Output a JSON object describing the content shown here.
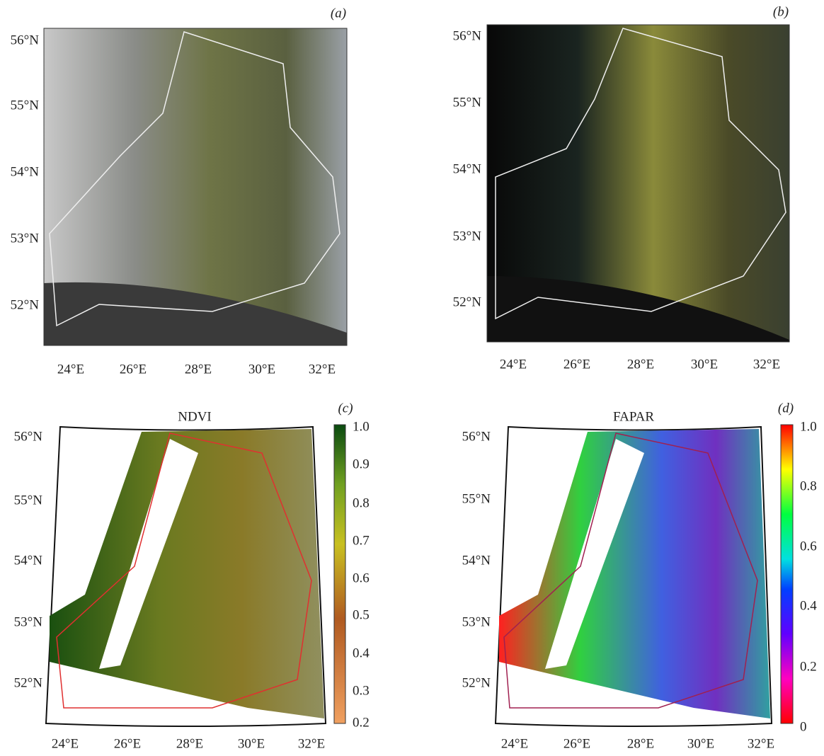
{
  "panels": [
    {
      "label": "(a)",
      "lat_labels": [
        "56°N",
        "55°N",
        "54°N",
        "53°N",
        "52°N"
      ],
      "lon_labels": [
        "24°E",
        "26°E",
        "28°E",
        "30°E",
        "32°E"
      ]
    },
    {
      "label": "(b)",
      "lat_labels": [
        "56°N",
        "55°N",
        "54°N",
        "53°N",
        "52°N"
      ],
      "lon_labels": [
        "24°E",
        "26°E",
        "28°E",
        "30°E",
        "32°E"
      ]
    },
    {
      "label": "(c)",
      "title": "NDVI",
      "lat_labels": [
        "56°N",
        "55°N",
        "54°N",
        "53°N",
        "52°N"
      ],
      "lon_labels": [
        "24°E",
        "26°E",
        "28°E",
        "30°E",
        "32°E"
      ],
      "colorbar_labels": [
        "1.0",
        "0.9",
        "0.8",
        "0.7",
        "0.6",
        "0.5",
        "0.4",
        "0.3",
        "0.2"
      ]
    },
    {
      "label": "(d)",
      "title": "FAPAR",
      "lat_labels": [
        "56°N",
        "55°N",
        "54°N",
        "53°N",
        "52°N"
      ],
      "lon_labels": [
        "24°E",
        "26°E",
        "28°E",
        "30°E",
        "32°E"
      ],
      "colorbar_labels": [
        "1.0",
        "0.8",
        "0.6",
        "0.4",
        "0.2",
        "0"
      ]
    }
  ]
}
